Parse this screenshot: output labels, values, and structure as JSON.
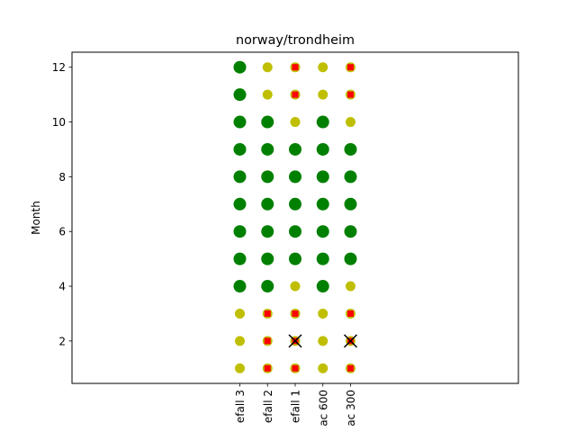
{
  "chart_data": {
    "type": "scatter",
    "title": "norway/trondheim",
    "xlabel": "",
    "ylabel": "Month",
    "categories": [
      "efall 3",
      "efall 2",
      "efall 1",
      "ac 600",
      "ac 300"
    ],
    "ylim": [
      0.45,
      12.55
    ],
    "yticks": [
      2,
      4,
      6,
      8,
      10,
      12
    ],
    "grid": false,
    "legend": "none",
    "colors": {
      "large": "#008000",
      "small": "#bfbf00",
      "square": "#ff0000",
      "cross": "#000000"
    },
    "points": [
      {
        "category": "efall 3",
        "month": 1,
        "marker": "small"
      },
      {
        "category": "efall 3",
        "month": 2,
        "marker": "small"
      },
      {
        "category": "efall 3",
        "month": 3,
        "marker": "small"
      },
      {
        "category": "efall 3",
        "month": 4,
        "marker": "large"
      },
      {
        "category": "efall 3",
        "month": 5,
        "marker": "large"
      },
      {
        "category": "efall 3",
        "month": 6,
        "marker": "large"
      },
      {
        "category": "efall 3",
        "month": 7,
        "marker": "large"
      },
      {
        "category": "efall 3",
        "month": 8,
        "marker": "large"
      },
      {
        "category": "efall 3",
        "month": 9,
        "marker": "large"
      },
      {
        "category": "efall 3",
        "month": 10,
        "marker": "large"
      },
      {
        "category": "efall 3",
        "month": 11,
        "marker": "large"
      },
      {
        "category": "efall 3",
        "month": 12,
        "marker": "large"
      },
      {
        "category": "efall 2",
        "month": 1,
        "marker": "small",
        "square": true
      },
      {
        "category": "efall 2",
        "month": 2,
        "marker": "small",
        "square": true
      },
      {
        "category": "efall 2",
        "month": 3,
        "marker": "small",
        "square": true
      },
      {
        "category": "efall 2",
        "month": 4,
        "marker": "large"
      },
      {
        "category": "efall 2",
        "month": 5,
        "marker": "large"
      },
      {
        "category": "efall 2",
        "month": 6,
        "marker": "large"
      },
      {
        "category": "efall 2",
        "month": 7,
        "marker": "large"
      },
      {
        "category": "efall 2",
        "month": 8,
        "marker": "large"
      },
      {
        "category": "efall 2",
        "month": 9,
        "marker": "large"
      },
      {
        "category": "efall 2",
        "month": 10,
        "marker": "large"
      },
      {
        "category": "efall 2",
        "month": 11,
        "marker": "small"
      },
      {
        "category": "efall 2",
        "month": 12,
        "marker": "small"
      },
      {
        "category": "efall 1",
        "month": 1,
        "marker": "small",
        "square": true
      },
      {
        "category": "efall 1",
        "month": 2,
        "marker": "small",
        "square": true,
        "cross": true
      },
      {
        "category": "efall 1",
        "month": 3,
        "marker": "small",
        "square": true
      },
      {
        "category": "efall 1",
        "month": 4,
        "marker": "small"
      },
      {
        "category": "efall 1",
        "month": 5,
        "marker": "large"
      },
      {
        "category": "efall 1",
        "month": 6,
        "marker": "large"
      },
      {
        "category": "efall 1",
        "month": 7,
        "marker": "large"
      },
      {
        "category": "efall 1",
        "month": 8,
        "marker": "large"
      },
      {
        "category": "efall 1",
        "month": 9,
        "marker": "large"
      },
      {
        "category": "efall 1",
        "month": 10,
        "marker": "small"
      },
      {
        "category": "efall 1",
        "month": 11,
        "marker": "small",
        "square": true
      },
      {
        "category": "efall 1",
        "month": 12,
        "marker": "small",
        "square": true
      },
      {
        "category": "ac 600",
        "month": 1,
        "marker": "small"
      },
      {
        "category": "ac 600",
        "month": 2,
        "marker": "small"
      },
      {
        "category": "ac 600",
        "month": 3,
        "marker": "small"
      },
      {
        "category": "ac 600",
        "month": 4,
        "marker": "large"
      },
      {
        "category": "ac 600",
        "month": 5,
        "marker": "large"
      },
      {
        "category": "ac 600",
        "month": 6,
        "marker": "large"
      },
      {
        "category": "ac 600",
        "month": 7,
        "marker": "large"
      },
      {
        "category": "ac 600",
        "month": 8,
        "marker": "large"
      },
      {
        "category": "ac 600",
        "month": 9,
        "marker": "large"
      },
      {
        "category": "ac 600",
        "month": 10,
        "marker": "large"
      },
      {
        "category": "ac 600",
        "month": 11,
        "marker": "small"
      },
      {
        "category": "ac 600",
        "month": 12,
        "marker": "small"
      },
      {
        "category": "ac 300",
        "month": 1,
        "marker": "small",
        "square": true
      },
      {
        "category": "ac 300",
        "month": 2,
        "marker": "small",
        "square": true,
        "cross": true
      },
      {
        "category": "ac 300",
        "month": 3,
        "marker": "small",
        "square": true
      },
      {
        "category": "ac 300",
        "month": 4,
        "marker": "small"
      },
      {
        "category": "ac 300",
        "month": 5,
        "marker": "large"
      },
      {
        "category": "ac 300",
        "month": 6,
        "marker": "large"
      },
      {
        "category": "ac 300",
        "month": 7,
        "marker": "large"
      },
      {
        "category": "ac 300",
        "month": 8,
        "marker": "large"
      },
      {
        "category": "ac 300",
        "month": 9,
        "marker": "large"
      },
      {
        "category": "ac 300",
        "month": 10,
        "marker": "small"
      },
      {
        "category": "ac 300",
        "month": 11,
        "marker": "small",
        "square": true
      },
      {
        "category": "ac 300",
        "month": 12,
        "marker": "small",
        "square": true
      }
    ]
  }
}
